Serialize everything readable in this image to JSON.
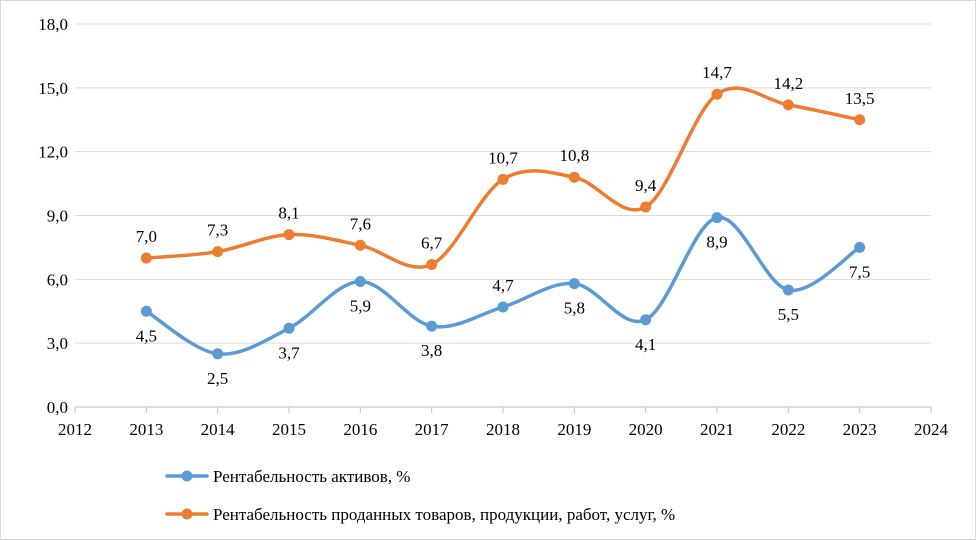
{
  "chart_data": {
    "type": "line",
    "title": "",
    "xlabel": "",
    "ylabel": "",
    "x": [
      2013,
      2014,
      2015,
      2016,
      2017,
      2018,
      2019,
      2020,
      2021,
      2022,
      2023
    ],
    "xlim": [
      2012,
      2024
    ],
    "x_ticks": [
      "2012",
      "2013",
      "2014",
      "2015",
      "2016",
      "2017",
      "2018",
      "2019",
      "2020",
      "2021",
      "2022",
      "2023",
      "2024"
    ],
    "ylim": [
      0,
      18
    ],
    "y_ticks": [
      "0,0",
      "3,0",
      "6,0",
      "9,0",
      "12,0",
      "15,0",
      "18,0"
    ],
    "grid": "horizontal",
    "legend_position": "bottom",
    "series": [
      {
        "name": "Рентабельность активов, %",
        "color": "#5B9BD5",
        "values": [
          4.5,
          2.5,
          3.7,
          5.9,
          3.8,
          4.7,
          5.8,
          4.1,
          8.9,
          5.5,
          7.5
        ],
        "labels": [
          "4,5",
          "2,5",
          "3,7",
          "5,9",
          "3,8",
          "4,7",
          "5,8",
          "4,1",
          "8,9",
          "5,5",
          "7,5"
        ],
        "label_side": [
          "below",
          "below",
          "below",
          "below",
          "below",
          "above",
          "below",
          "below",
          "below",
          "below",
          "below"
        ]
      },
      {
        "name": "Рентабельность проданных товаров, продукции, работ, услуг, %",
        "color": "#ED7D31",
        "values": [
          7.0,
          7.3,
          8.1,
          7.6,
          6.7,
          10.7,
          10.8,
          9.4,
          14.7,
          14.2,
          13.5
        ],
        "labels": [
          "7,0",
          "7,3",
          "8,1",
          "7,6",
          "6,7",
          "10,7",
          "10,8",
          "9,4",
          "14,7",
          "14,2",
          "13,5"
        ],
        "label_side": [
          "above",
          "above",
          "above",
          "above",
          "above",
          "above",
          "above",
          "above",
          "above",
          "above",
          "above"
        ]
      }
    ]
  }
}
